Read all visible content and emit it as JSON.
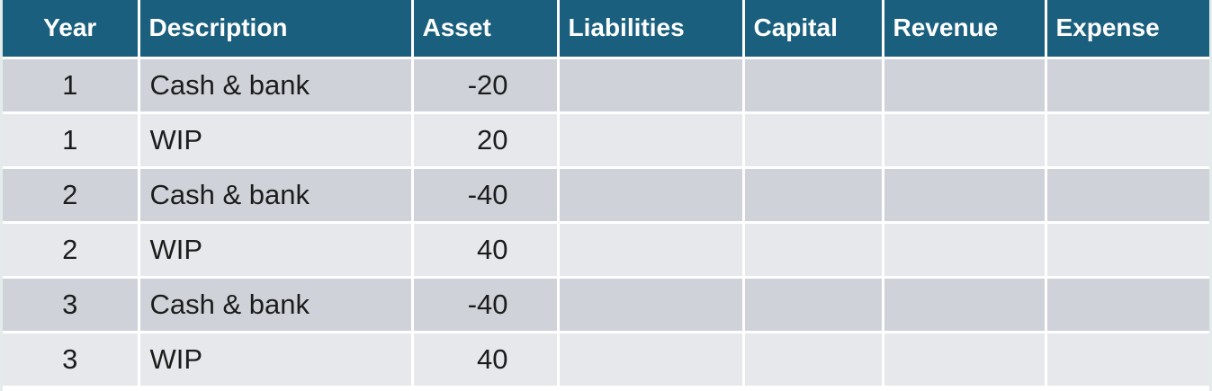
{
  "colors": {
    "header_bg": "#1a5f7e",
    "header_text": "#ffffff",
    "row_dark": "#cfd3d9",
    "row_light": "#e6e8ec"
  },
  "table": {
    "headers": [
      "Year",
      "Description",
      "Asset",
      "Liabilities",
      "Capital",
      "Revenue",
      "Expense"
    ],
    "rows": [
      {
        "year": "1",
        "description": "Cash & bank",
        "asset": "-20",
        "liabilities": "",
        "capital": "",
        "revenue": "",
        "expense": ""
      },
      {
        "year": "1",
        "description": "WIP",
        "asset": "20",
        "liabilities": "",
        "capital": "",
        "revenue": "",
        "expense": ""
      },
      {
        "year": "2",
        "description": "Cash & bank",
        "asset": "-40",
        "liabilities": "",
        "capital": "",
        "revenue": "",
        "expense": ""
      },
      {
        "year": "2",
        "description": "WIP",
        "asset": "40",
        "liabilities": "",
        "capital": "",
        "revenue": "",
        "expense": ""
      },
      {
        "year": "3",
        "description": "Cash & bank",
        "asset": "-40",
        "liabilities": "",
        "capital": "",
        "revenue": "",
        "expense": ""
      },
      {
        "year": "3",
        "description": "WIP",
        "asset": "40",
        "liabilities": "",
        "capital": "",
        "revenue": "",
        "expense": ""
      }
    ]
  }
}
